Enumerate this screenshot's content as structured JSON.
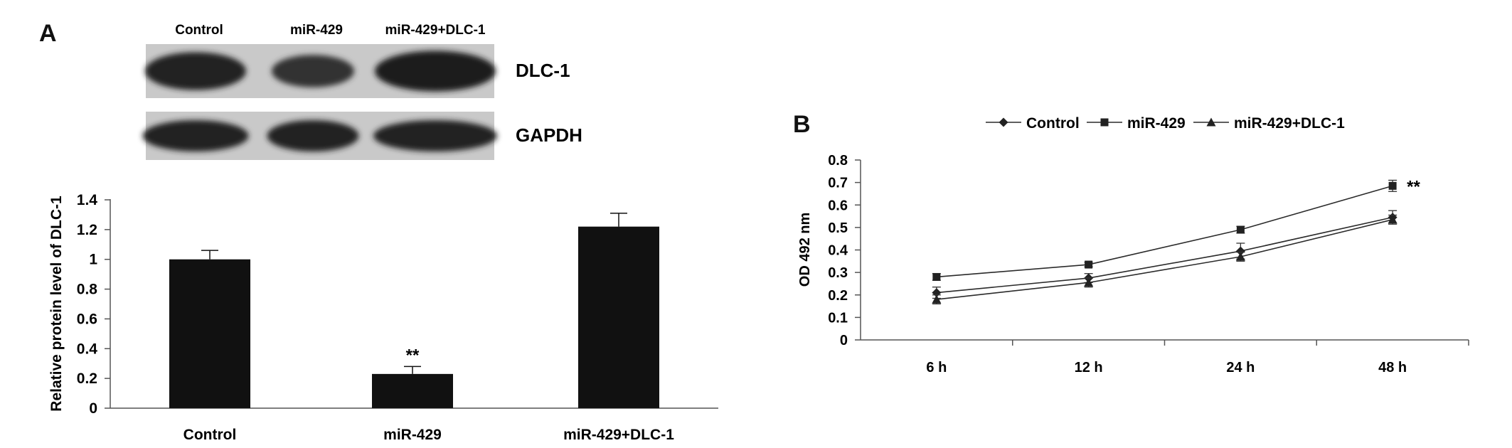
{
  "panel_a": {
    "letter": "A",
    "blot": {
      "column_labels": [
        "Control",
        "miR-429",
        "miR-429+DLC-1"
      ],
      "row_labels": [
        "DLC-1",
        "GAPDH"
      ],
      "band_intensity": {
        "DLC-1": [
          0.85,
          0.55,
          1.0
        ],
        "GAPDH": [
          0.9,
          0.9,
          0.85
        ]
      }
    }
  },
  "panel_b": {
    "letter": "B"
  },
  "chart_data": [
    {
      "type": "bar",
      "categories": [
        "Control",
        "miR-429",
        "miR-429+DLC-1"
      ],
      "values": [
        1.0,
        0.23,
        1.22
      ],
      "errors": [
        0.06,
        0.05,
        0.09
      ],
      "annotations": [
        null,
        "**",
        null
      ],
      "ylabel": "Relative protein level of DLC-1",
      "xlabel": "",
      "ylim": [
        0,
        1.4
      ],
      "yticks": [
        "0",
        "0.2",
        "0.4",
        "0.6",
        "0.8",
        "1",
        "1.2",
        "1.4"
      ],
      "grid": false,
      "bar_color": "#111111"
    },
    {
      "type": "line",
      "x": [
        "6 h",
        "12 h",
        "24 h",
        "48 h"
      ],
      "series": [
        {
          "name": "Control",
          "marker": "diamond",
          "values": [
            0.21,
            0.275,
            0.395,
            0.545
          ],
          "errors": [
            0.025,
            0.02,
            0.035,
            0.03
          ]
        },
        {
          "name": "miR-429",
          "marker": "square",
          "values": [
            0.28,
            0.335,
            0.49,
            0.685
          ],
          "errors": [
            0.015,
            0.01,
            0.015,
            0.025
          ]
        },
        {
          "name": "miR-429+DLC-1",
          "marker": "triangle",
          "values": [
            0.18,
            0.255,
            0.37,
            0.535
          ],
          "errors": [
            0.02,
            0.02,
            0.02,
            0.02
          ]
        }
      ],
      "annotation": "**",
      "ylabel": "OD 492 nm",
      "xlabel": "",
      "ylim": [
        0,
        0.8
      ],
      "yticks": [
        "0",
        "0.1",
        "0.2",
        "0.3",
        "0.4",
        "0.5",
        "0.6",
        "0.7",
        "0.8"
      ],
      "legend_position": "top",
      "grid": false,
      "line_color": "#2a2a2a"
    }
  ]
}
